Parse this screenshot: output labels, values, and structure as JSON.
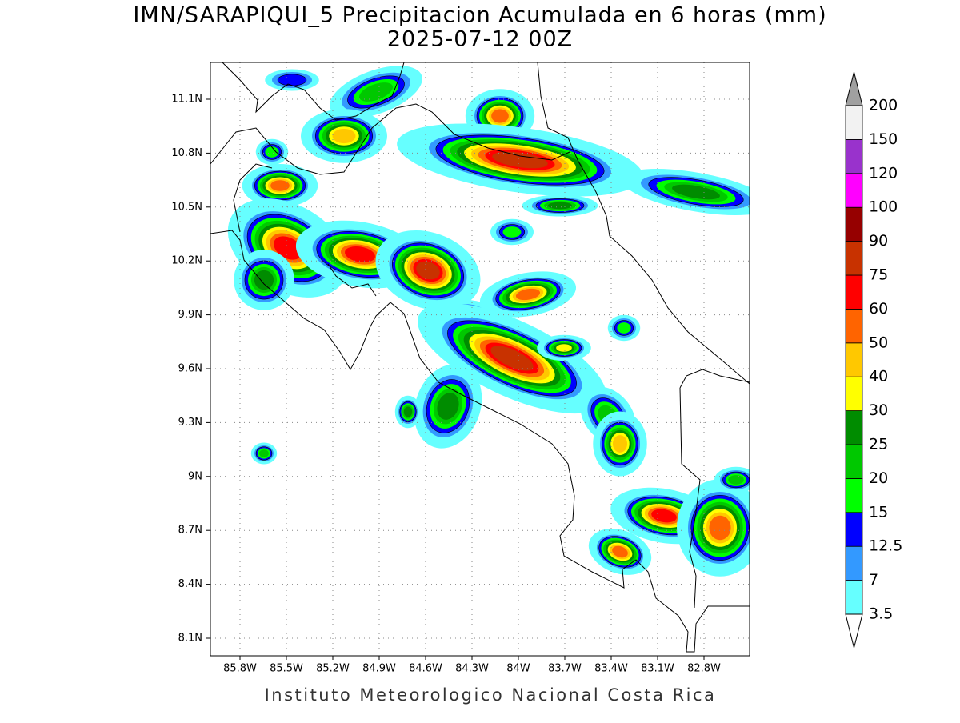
{
  "title": "IMN/SARAPIQUI_5 Precipitacion Acumulada en 6 horas (mm)",
  "subtitle": "2025-07-12 00Z",
  "map": {
    "lat_labels": [
      "11.1N",
      "10.8N",
      "10.5N",
      "10.2N",
      "9.9N",
      "9.6N",
      "9.3N",
      "9N",
      "8.7N",
      "8.4N",
      "8.1N"
    ],
    "lon_labels": [
      "85.8W",
      "85.5W",
      "85.2W",
      "84.9W",
      "84.6W",
      "84.3W",
      "84W",
      "83.7W",
      "83.4W",
      "83.1W",
      "82.8W"
    ]
  },
  "colorbar": {
    "levels": [
      3.5,
      7,
      12.5,
      15,
      20,
      25,
      30,
      40,
      50,
      60,
      75,
      90,
      100,
      120,
      150,
      200
    ],
    "colors": [
      "#66ffff",
      "#3399ff",
      "#0000ff",
      "#00ff00",
      "#00c800",
      "#008c00",
      "#ffff00",
      "#ffc800",
      "#ff6400",
      "#ff0000",
      "#c83200",
      "#960000",
      "#ff00ff",
      "#9932cc",
      "#f2f2f2"
    ],
    "under_color": "#ffffff",
    "over_color": "#a0a0a0"
  },
  "footer": "Instituto Meteorologico Nacional Costa Rica"
}
